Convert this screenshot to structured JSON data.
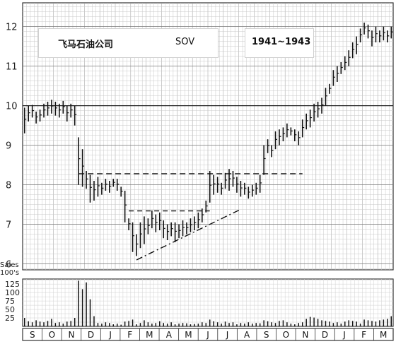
{
  "chart_data": {
    "type": "bar",
    "title": "飞马石油公司",
    "ticker": "SOV",
    "period": "1941~1943",
    "y_ticks": [
      "12",
      "11",
      "10",
      "9",
      "8",
      "7",
      "6"
    ],
    "ylim": [
      5.85,
      12.6
    ],
    "volume_label": "Sales\n100's",
    "volume_ticks": [
      "125",
      "100",
      "75",
      "50",
      "25"
    ],
    "volume_ylim": [
      0,
      140
    ],
    "months": [
      "S",
      "O",
      "N",
      "D",
      "J",
      "F",
      "M",
      "A",
      "M",
      "J",
      "J",
      "A",
      "S",
      "O",
      "N",
      "D",
      "J",
      "F",
      "M"
    ],
    "week_ranges": [
      [
        9.3,
        9.95
      ],
      [
        9.6,
        10.0
      ],
      [
        9.7,
        10.02
      ],
      [
        9.55,
        9.85
      ],
      [
        9.6,
        9.9
      ],
      [
        9.7,
        10.05
      ],
      [
        9.75,
        10.1
      ],
      [
        9.8,
        10.15
      ],
      [
        9.75,
        10.1
      ],
      [
        9.7,
        10.05
      ],
      [
        9.8,
        10.12
      ],
      [
        9.6,
        10.0
      ],
      [
        9.7,
        10.05
      ],
      [
        9.5,
        10.0
      ],
      [
        8.0,
        9.2
      ],
      [
        7.95,
        8.9
      ],
      [
        7.9,
        8.35
      ],
      [
        7.55,
        8.25
      ],
      [
        7.6,
        8.1
      ],
      [
        7.7,
        8.2
      ],
      [
        7.75,
        8.05
      ],
      [
        7.85,
        8.15
      ],
      [
        7.8,
        8.1
      ],
      [
        7.95,
        8.15
      ],
      [
        7.85,
        8.15
      ],
      [
        7.7,
        7.95
      ],
      [
        7.05,
        7.85
      ],
      [
        6.85,
        7.15
      ],
      [
        6.3,
        7.05
      ],
      [
        6.2,
        6.75
      ],
      [
        6.4,
        7.05
      ],
      [
        6.5,
        7.2
      ],
      [
        6.75,
        7.15
      ],
      [
        6.9,
        7.35
      ],
      [
        6.8,
        7.25
      ],
      [
        6.85,
        7.3
      ],
      [
        6.65,
        7.1
      ],
      [
        6.6,
        7.0
      ],
      [
        6.7,
        7.05
      ],
      [
        6.55,
        7.05
      ],
      [
        6.65,
        7.0
      ],
      [
        6.7,
        7.1
      ],
      [
        6.75,
        7.05
      ],
      [
        6.8,
        7.15
      ],
      [
        6.85,
        7.2
      ],
      [
        6.9,
        7.3
      ],
      [
        7.05,
        7.4
      ],
      [
        7.3,
        7.6
      ],
      [
        7.55,
        8.35
      ],
      [
        7.75,
        8.25
      ],
      [
        7.8,
        8.2
      ],
      [
        7.75,
        8.05
      ],
      [
        7.9,
        8.3
      ],
      [
        7.85,
        8.4
      ],
      [
        7.95,
        8.35
      ],
      [
        7.8,
        8.2
      ],
      [
        7.7,
        8.1
      ],
      [
        7.75,
        8.05
      ],
      [
        7.65,
        7.95
      ],
      [
        7.7,
        8.0
      ],
      [
        7.75,
        8.05
      ],
      [
        7.8,
        8.25
      ],
      [
        8.25,
        9.0
      ],
      [
        8.8,
        9.15
      ],
      [
        8.7,
        9.0
      ],
      [
        8.9,
        9.35
      ],
      [
        9.0,
        9.4
      ],
      [
        9.1,
        9.45
      ],
      [
        9.2,
        9.55
      ],
      [
        9.25,
        9.45
      ],
      [
        9.1,
        9.4
      ],
      [
        9.0,
        9.35
      ],
      [
        9.2,
        9.65
      ],
      [
        9.4,
        9.8
      ],
      [
        9.45,
        9.9
      ],
      [
        9.6,
        10.05
      ],
      [
        9.7,
        10.1
      ],
      [
        9.8,
        10.2
      ],
      [
        10.0,
        10.45
      ],
      [
        10.3,
        10.55
      ],
      [
        10.5,
        10.9
      ],
      [
        10.6,
        11.0
      ],
      [
        10.8,
        11.1
      ],
      [
        10.9,
        11.25
      ],
      [
        11.0,
        11.4
      ],
      [
        11.2,
        11.6
      ],
      [
        11.3,
        11.75
      ],
      [
        11.6,
        11.95
      ],
      [
        11.8,
        12.1
      ],
      [
        11.7,
        12.05
      ],
      [
        11.5,
        11.9
      ],
      [
        11.6,
        12.0
      ],
      [
        11.6,
        11.9
      ],
      [
        11.65,
        12.0
      ],
      [
        11.6,
        11.9
      ],
      [
        11.7,
        12.0
      ]
    ],
    "volume_weeks": [
      25,
      15,
      12,
      18,
      14,
      12,
      16,
      22,
      10,
      12,
      8,
      14,
      16,
      25,
      135,
      110,
      130,
      80,
      30,
      10,
      8,
      12,
      10,
      6,
      8,
      5,
      14,
      16,
      20,
      6,
      10,
      18,
      12,
      8,
      10,
      15,
      10,
      8,
      12,
      6,
      8,
      10,
      9,
      6,
      7,
      8,
      12,
      10,
      20,
      15,
      12,
      8,
      14,
      10,
      12,
      6,
      10,
      8,
      12,
      8,
      10,
      9,
      18,
      15,
      12,
      10,
      16,
      18,
      12,
      8,
      6,
      10,
      12,
      22,
      28,
      26,
      22,
      18,
      16,
      14,
      10,
      12,
      8,
      14,
      18,
      16,
      14,
      8,
      20,
      18,
      16,
      14,
      18,
      20,
      22,
      30
    ]
  }
}
